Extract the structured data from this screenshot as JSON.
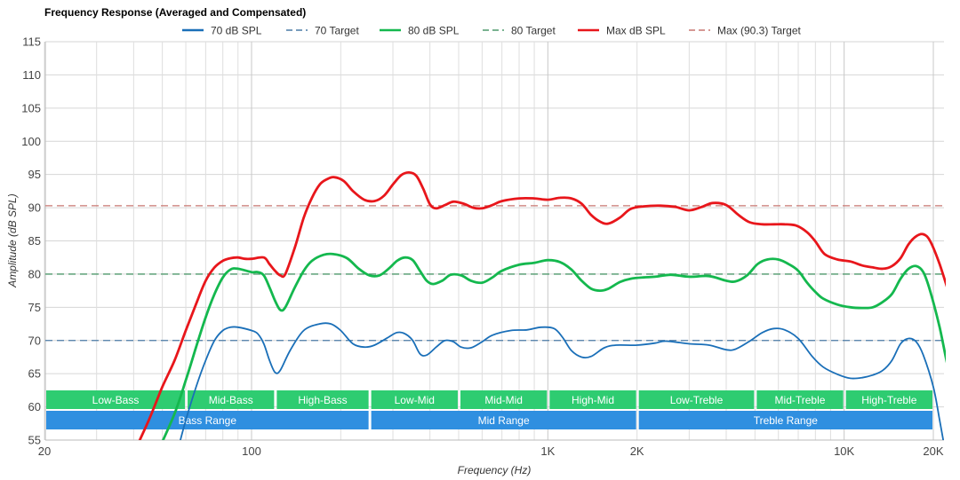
{
  "chart_data": {
    "type": "line",
    "title": "Frequency Response (Averaged and Compensated)",
    "xlabel": "Frequency (Hz)",
    "ylabel": "Amplitude (dB SPL)",
    "x_scale": "log",
    "xlim": [
      20,
      20000
    ],
    "ylim": [
      55,
      115
    ],
    "grid": true,
    "legend_position": "top-center",
    "x_ticks": [
      {
        "value": 20,
        "label": "20"
      },
      {
        "value": 100,
        "label": "100"
      },
      {
        "value": 1000,
        "label": "1K"
      },
      {
        "value": 2000,
        "label": "2K"
      },
      {
        "value": 10000,
        "label": "10K"
      },
      {
        "value": 20000,
        "label": "20K"
      }
    ],
    "y_ticks": [
      55,
      60,
      65,
      70,
      75,
      80,
      85,
      90,
      95,
      100,
      105,
      110,
      115
    ],
    "series": [
      {
        "name": "70 dB SPL",
        "color": "#1a6fb8",
        "style": "solid",
        "points": [
          [
            56,
            53
          ],
          [
            60,
            58
          ],
          [
            65,
            63
          ],
          [
            70,
            67
          ],
          [
            75,
            70
          ],
          [
            80,
            71.5
          ],
          [
            85,
            72
          ],
          [
            90,
            72
          ],
          [
            100,
            71.5
          ],
          [
            105,
            71
          ],
          [
            110,
            69.5
          ],
          [
            115,
            67
          ],
          [
            120,
            65.2
          ],
          [
            125,
            65.5
          ],
          [
            135,
            68.5
          ],
          [
            150,
            71.5
          ],
          [
            170,
            72.5
          ],
          [
            185,
            72.5
          ],
          [
            200,
            71.5
          ],
          [
            220,
            69.5
          ],
          [
            240,
            69
          ],
          [
            260,
            69.3
          ],
          [
            290,
            70.5
          ],
          [
            310,
            71.2
          ],
          [
            330,
            71
          ],
          [
            350,
            70
          ],
          [
            370,
            68
          ],
          [
            390,
            67.8
          ],
          [
            420,
            69
          ],
          [
            450,
            70
          ],
          [
            480,
            69.8
          ],
          [
            510,
            69
          ],
          [
            550,
            68.9
          ],
          [
            600,
            69.8
          ],
          [
            650,
            70.8
          ],
          [
            750,
            71.5
          ],
          [
            850,
            71.6
          ],
          [
            950,
            72
          ],
          [
            1050,
            71.8
          ],
          [
            1120,
            70.5
          ],
          [
            1200,
            68.5
          ],
          [
            1300,
            67.5
          ],
          [
            1400,
            67.6
          ],
          [
            1550,
            68.9
          ],
          [
            1700,
            69.3
          ],
          [
            2000,
            69.3
          ],
          [
            2300,
            69.6
          ],
          [
            2500,
            69.9
          ],
          [
            3000,
            69.5
          ],
          [
            3500,
            69.3
          ],
          [
            4000,
            68.6
          ],
          [
            4300,
            68.7
          ],
          [
            4800,
            69.9
          ],
          [
            5300,
            71.2
          ],
          [
            5800,
            71.8
          ],
          [
            6300,
            71.6
          ],
          [
            7000,
            70.3
          ],
          [
            7800,
            67.6
          ],
          [
            8500,
            66
          ],
          [
            9500,
            64.9
          ],
          [
            10500,
            64.3
          ],
          [
            11500,
            64.4
          ],
          [
            12500,
            64.8
          ],
          [
            13500,
            65.5
          ],
          [
            14500,
            67
          ],
          [
            15500,
            69.5
          ],
          [
            16500,
            70.3
          ],
          [
            17500,
            69.8
          ],
          [
            18500,
            67.8
          ],
          [
            20000,
            63
          ],
          [
            21000,
            58
          ],
          [
            22000,
            53
          ]
        ]
      },
      {
        "name": "70 Target",
        "color": "#4a7ba6",
        "style": "dashed",
        "points": [
          [
            20,
            70
          ],
          [
            22000,
            70
          ]
        ]
      },
      {
        "name": "80 dB SPL",
        "color": "#14b84e",
        "style": "solid",
        "points": [
          [
            48,
            53
          ],
          [
            55,
            59
          ],
          [
            60,
            64
          ],
          [
            65,
            69
          ],
          [
            70,
            73.5
          ],
          [
            75,
            77
          ],
          [
            80,
            79.5
          ],
          [
            85,
            80.7
          ],
          [
            90,
            80.8
          ],
          [
            100,
            80.3
          ],
          [
            105,
            80.3
          ],
          [
            110,
            79.8
          ],
          [
            115,
            78
          ],
          [
            120,
            76
          ],
          [
            125,
            74.6
          ],
          [
            130,
            75
          ],
          [
            140,
            78
          ],
          [
            150,
            80.5
          ],
          [
            160,
            82
          ],
          [
            175,
            82.9
          ],
          [
            190,
            83
          ],
          [
            210,
            82.4
          ],
          [
            230,
            80.8
          ],
          [
            250,
            79.8
          ],
          [
            270,
            79.8
          ],
          [
            290,
            80.8
          ],
          [
            310,
            82
          ],
          [
            330,
            82.5
          ],
          [
            350,
            82.1
          ],
          [
            370,
            80.5
          ],
          [
            390,
            79
          ],
          [
            410,
            78.5
          ],
          [
            440,
            79
          ],
          [
            470,
            79.9
          ],
          [
            510,
            79.8
          ],
          [
            550,
            79
          ],
          [
            600,
            78.7
          ],
          [
            650,
            79.5
          ],
          [
            700,
            80.5
          ],
          [
            800,
            81.4
          ],
          [
            900,
            81.7
          ],
          [
            1000,
            82.1
          ],
          [
            1100,
            81.8
          ],
          [
            1200,
            80.7
          ],
          [
            1300,
            79
          ],
          [
            1400,
            77.8
          ],
          [
            1500,
            77.5
          ],
          [
            1600,
            77.8
          ],
          [
            1750,
            78.8
          ],
          [
            1900,
            79.3
          ],
          [
            2100,
            79.5
          ],
          [
            2300,
            79.6
          ],
          [
            2600,
            79.9
          ],
          [
            3000,
            79.6
          ],
          [
            3500,
            79.7
          ],
          [
            4000,
            79
          ],
          [
            4300,
            78.9
          ],
          [
            4700,
            79.8
          ],
          [
            5100,
            81.5
          ],
          [
            5500,
            82.2
          ],
          [
            6000,
            82.2
          ],
          [
            6500,
            81.5
          ],
          [
            7000,
            80.5
          ],
          [
            7500,
            78.7
          ],
          [
            8000,
            77.3
          ],
          [
            8500,
            76.3
          ],
          [
            9500,
            75.4
          ],
          [
            10500,
            75
          ],
          [
            11500,
            74.9
          ],
          [
            12500,
            75
          ],
          [
            13500,
            75.8
          ],
          [
            14500,
            77
          ],
          [
            15500,
            79.3
          ],
          [
            16500,
            80.8
          ],
          [
            17500,
            81.2
          ],
          [
            18500,
            80.3
          ],
          [
            19500,
            77.5
          ],
          [
            21000,
            72
          ],
          [
            23000,
            64
          ],
          [
            25000,
            62
          ]
        ]
      },
      {
        "name": "80 Target",
        "color": "#4f9a6d",
        "style": "dashed",
        "points": [
          [
            20,
            80
          ],
          [
            22000,
            80
          ]
        ]
      },
      {
        "name": "Max dB SPL",
        "color": "#e8161b",
        "style": "solid",
        "points": [
          [
            40,
            53
          ],
          [
            45,
            58
          ],
          [
            50,
            63
          ],
          [
            55,
            67
          ],
          [
            60,
            71.5
          ],
          [
            65,
            75.5
          ],
          [
            70,
            79
          ],
          [
            75,
            81
          ],
          [
            80,
            82
          ],
          [
            85,
            82.4
          ],
          [
            90,
            82.5
          ],
          [
            95,
            82.3
          ],
          [
            100,
            82.3
          ],
          [
            110,
            82.5
          ],
          [
            115,
            81.5
          ],
          [
            120,
            80.5
          ],
          [
            125,
            79.8
          ],
          [
            130,
            80
          ],
          [
            140,
            84
          ],
          [
            150,
            88.5
          ],
          [
            160,
            91.5
          ],
          [
            170,
            93.5
          ],
          [
            180,
            94.3
          ],
          [
            190,
            94.6
          ],
          [
            205,
            94
          ],
          [
            220,
            92.5
          ],
          [
            240,
            91.2
          ],
          [
            260,
            91
          ],
          [
            280,
            91.8
          ],
          [
            300,
            93.5
          ],
          [
            320,
            94.9
          ],
          [
            340,
            95.3
          ],
          [
            360,
            94.8
          ],
          [
            380,
            92.8
          ],
          [
            400,
            90.5
          ],
          [
            420,
            89.9
          ],
          [
            450,
            90.4
          ],
          [
            480,
            90.9
          ],
          [
            520,
            90.6
          ],
          [
            560,
            90
          ],
          [
            600,
            89.9
          ],
          [
            650,
            90.4
          ],
          [
            700,
            91
          ],
          [
            800,
            91.4
          ],
          [
            900,
            91.4
          ],
          [
            1000,
            91.2
          ],
          [
            1100,
            91.5
          ],
          [
            1200,
            91.4
          ],
          [
            1300,
            90.6
          ],
          [
            1400,
            88.9
          ],
          [
            1500,
            87.9
          ],
          [
            1600,
            87.6
          ],
          [
            1750,
            88.5
          ],
          [
            1900,
            89.8
          ],
          [
            2100,
            90.2
          ],
          [
            2400,
            90.3
          ],
          [
            2700,
            90.1
          ],
          [
            3000,
            89.6
          ],
          [
            3300,
            90.1
          ],
          [
            3600,
            90.7
          ],
          [
            4000,
            90.4
          ],
          [
            4400,
            88.9
          ],
          [
            4800,
            87.8
          ],
          [
            5300,
            87.5
          ],
          [
            5800,
            87.5
          ],
          [
            6300,
            87.5
          ],
          [
            6900,
            87.3
          ],
          [
            7500,
            86.3
          ],
          [
            8000,
            84.9
          ],
          [
            8600,
            83
          ],
          [
            9500,
            82.2
          ],
          [
            10500,
            81.9
          ],
          [
            11500,
            81.3
          ],
          [
            12500,
            81
          ],
          [
            13500,
            80.8
          ],
          [
            14500,
            81.2
          ],
          [
            15500,
            82.4
          ],
          [
            16500,
            84.5
          ],
          [
            17500,
            85.7
          ],
          [
            18500,
            86
          ],
          [
            19500,
            85
          ],
          [
            21000,
            81.5
          ],
          [
            23000,
            76
          ],
          [
            25000,
            71
          ],
          [
            27000,
            68
          ]
        ]
      },
      {
        "name": "Max (90.3) Target",
        "color": "#c97670",
        "style": "dashed",
        "points": [
          [
            20,
            90.3
          ],
          [
            22000,
            90.3
          ]
        ]
      }
    ],
    "bands": [
      {
        "label": "Low-Bass",
        "row": 1,
        "from": 20,
        "to": 60,
        "color": "#2ecc71"
      },
      {
        "label": "Mid-Bass",
        "row": 1,
        "from": 60,
        "to": 120,
        "color": "#2ecc71"
      },
      {
        "label": "High-Bass",
        "row": 1,
        "from": 120,
        "to": 250,
        "color": "#2ecc71"
      },
      {
        "label": "Low-Mid",
        "row": 1,
        "from": 250,
        "to": 500,
        "color": "#2ecc71"
      },
      {
        "label": "Mid-Mid",
        "row": 1,
        "from": 500,
        "to": 1000,
        "color": "#2ecc71"
      },
      {
        "label": "High-Mid",
        "row": 1,
        "from": 1000,
        "to": 2000,
        "color": "#2ecc71"
      },
      {
        "label": "Low-Treble",
        "row": 1,
        "from": 2000,
        "to": 5000,
        "color": "#2ecc71"
      },
      {
        "label": "Mid-Treble",
        "row": 1,
        "from": 5000,
        "to": 10000,
        "color": "#2ecc71"
      },
      {
        "label": "High-Treble",
        "row": 1,
        "from": 10000,
        "to": 20000,
        "color": "#2ecc71"
      },
      {
        "label": "Bass Range",
        "row": 2,
        "from": 20,
        "to": 250,
        "color": "#2f8fe0"
      },
      {
        "label": "Mid Range",
        "row": 2,
        "from": 250,
        "to": 2000,
        "color": "#2f8fe0"
      },
      {
        "label": "Treble Range",
        "row": 2,
        "from": 2000,
        "to": 20000,
        "color": "#2f8fe0"
      }
    ]
  }
}
